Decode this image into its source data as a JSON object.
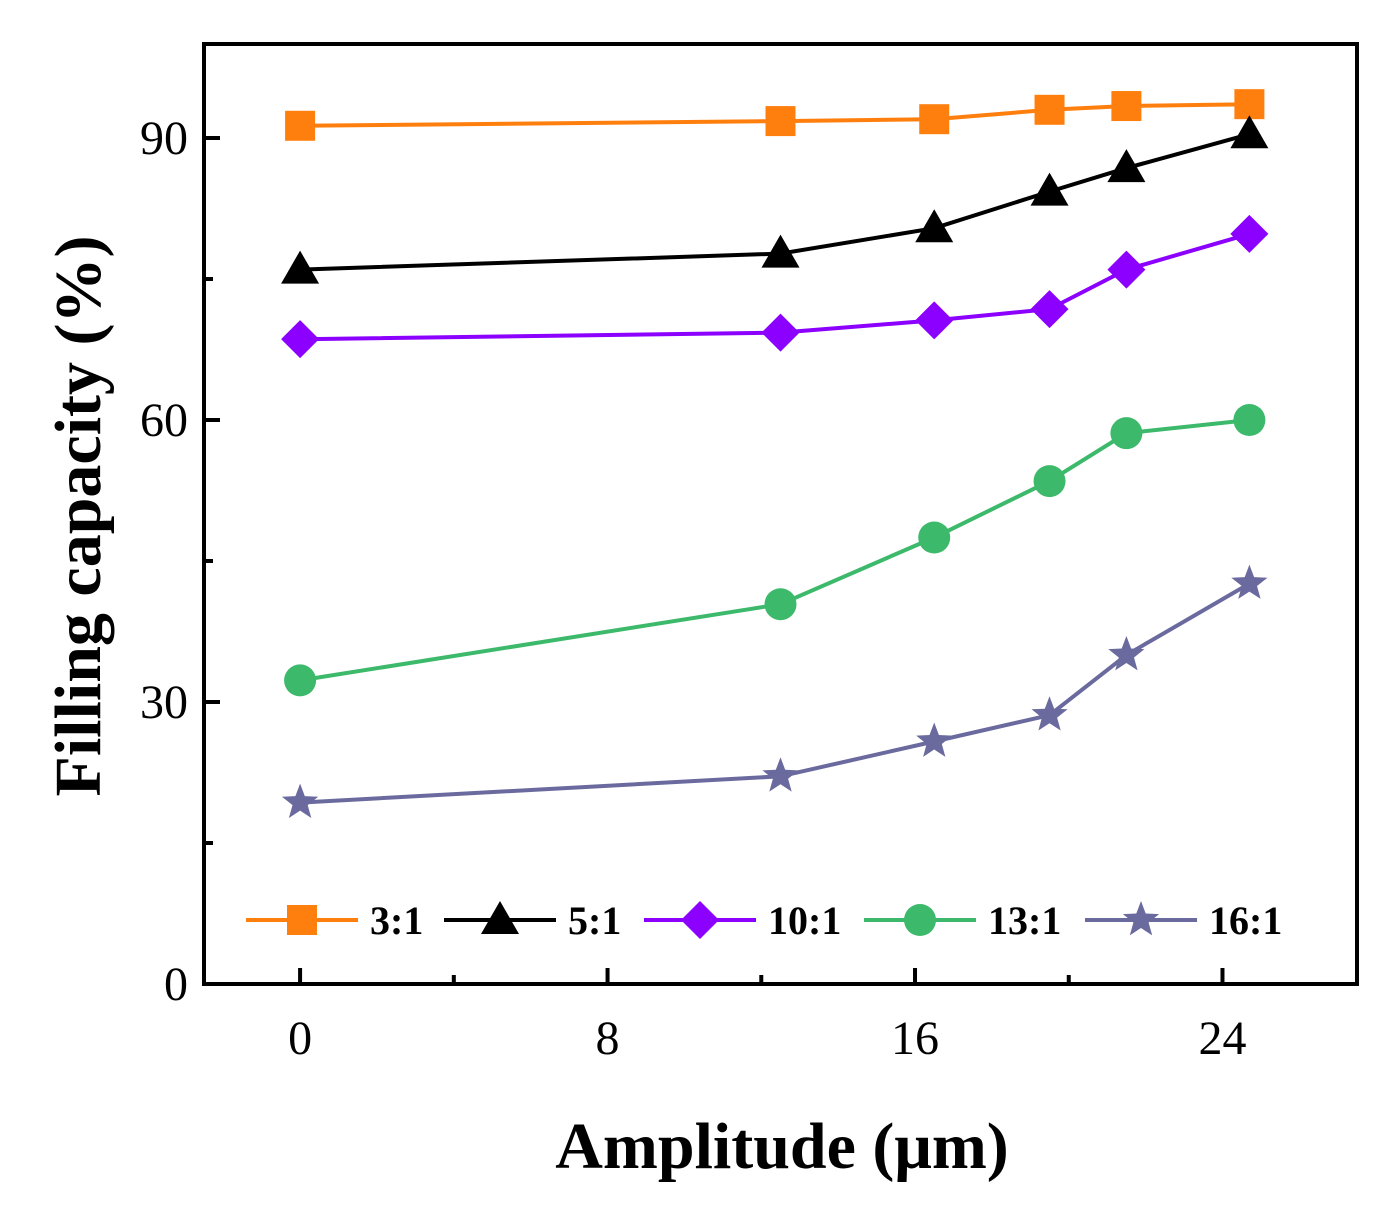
{
  "chart_data": {
    "type": "line",
    "xlabel": "Amplitude (μm)",
    "ylabel": "Filling capacity (%)",
    "xlim": [
      -2.5,
      27.5
    ],
    "ylim": [
      0,
      100
    ],
    "xticks": [
      0,
      8,
      16,
      24
    ],
    "xminor": [
      4,
      12,
      20
    ],
    "yticks": [
      0,
      30,
      60,
      90
    ],
    "yminor": [
      15,
      45,
      75
    ],
    "grid": false,
    "legend_position": "bottom",
    "series": [
      {
        "name": "3:1",
        "color": "#ff7f0e",
        "marker": "square",
        "x": [
          0,
          12.5,
          16.5,
          19.5,
          21.5,
          24.7
        ],
        "y": [
          91.3,
          91.8,
          92.0,
          93.0,
          93.4,
          93.6
        ]
      },
      {
        "name": "5:1",
        "color": "#000000",
        "marker": "triangle",
        "x": [
          0,
          12.5,
          16.5,
          19.5,
          21.5,
          24.7
        ],
        "y": [
          76.0,
          77.7,
          80.4,
          84.3,
          86.8,
          90.4
        ]
      },
      {
        "name": "10:1",
        "color": "#8b00ff",
        "marker": "diamond",
        "x": [
          0,
          12.5,
          16.5,
          19.5,
          21.5,
          24.7
        ],
        "y": [
          68.6,
          69.3,
          70.6,
          71.8,
          76.0,
          79.8
        ]
      },
      {
        "name": "13:1",
        "color": "#3cb96a",
        "marker": "circle",
        "x": [
          0,
          12.5,
          16.5,
          19.5,
          21.5,
          24.7
        ],
        "y": [
          32.3,
          40.4,
          47.5,
          53.5,
          58.6,
          60.0
        ]
      },
      {
        "name": "16:1",
        "color": "#6a6a9e",
        "marker": "star",
        "x": [
          0,
          12.5,
          16.5,
          19.5,
          21.5,
          24.7
        ],
        "y": [
          19.3,
          22.1,
          25.8,
          28.6,
          35.0,
          42.6
        ]
      }
    ]
  }
}
